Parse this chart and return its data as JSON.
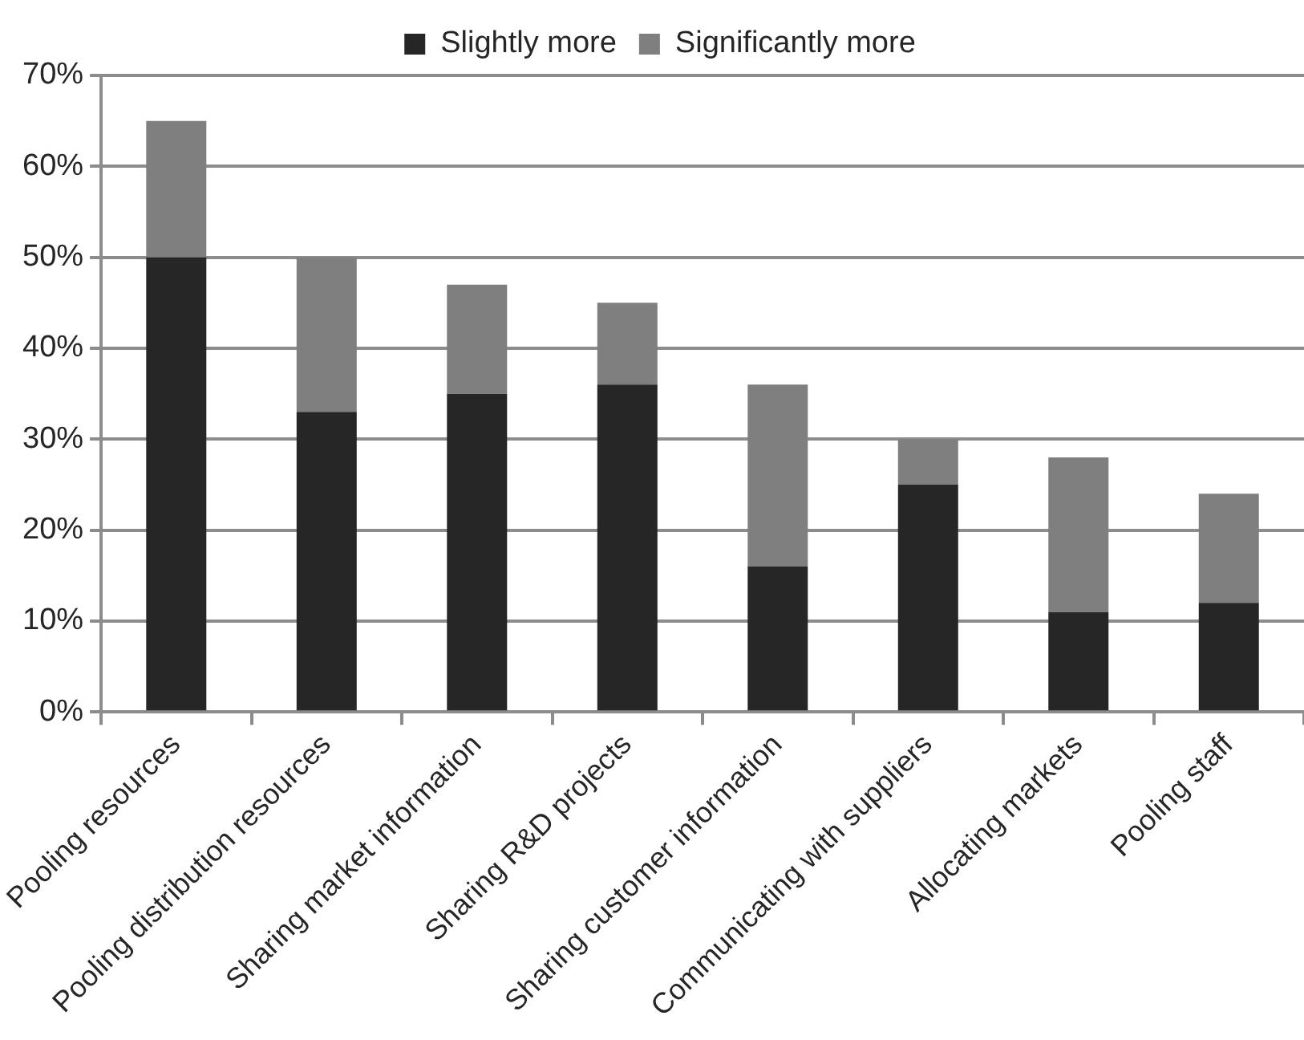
{
  "chart_data": {
    "type": "bar",
    "categories": [
      "Pooling resources",
      "Pooling distribution resources",
      "Sharing market information",
      "Sharing R&D projects",
      "Sharing customer information",
      "Communicating with suppliers",
      "Allocating markets",
      "Pooling staff"
    ],
    "series": [
      {
        "name": "Slightly more",
        "color": "#262626",
        "values": [
          50,
          33,
          35,
          36,
          16,
          25,
          11,
          12
        ]
      },
      {
        "name": "Significantly more",
        "color": "#7f7f7f",
        "values": [
          15,
          17,
          12,
          9,
          20,
          5,
          17,
          12
        ]
      }
    ],
    "stacked": true,
    "ylim": [
      0,
      70
    ],
    "yticks": [
      {
        "value": 0,
        "label": "0%"
      },
      {
        "value": 10,
        "label": "10%"
      },
      {
        "value": 20,
        "label": "20%"
      },
      {
        "value": 30,
        "label": "30%"
      },
      {
        "value": 40,
        "label": "40%"
      },
      {
        "value": 50,
        "label": "50%"
      },
      {
        "value": 60,
        "label": "60%"
      },
      {
        "value": 70,
        "label": "70%"
      }
    ],
    "grid": "y",
    "legend": "top"
  }
}
